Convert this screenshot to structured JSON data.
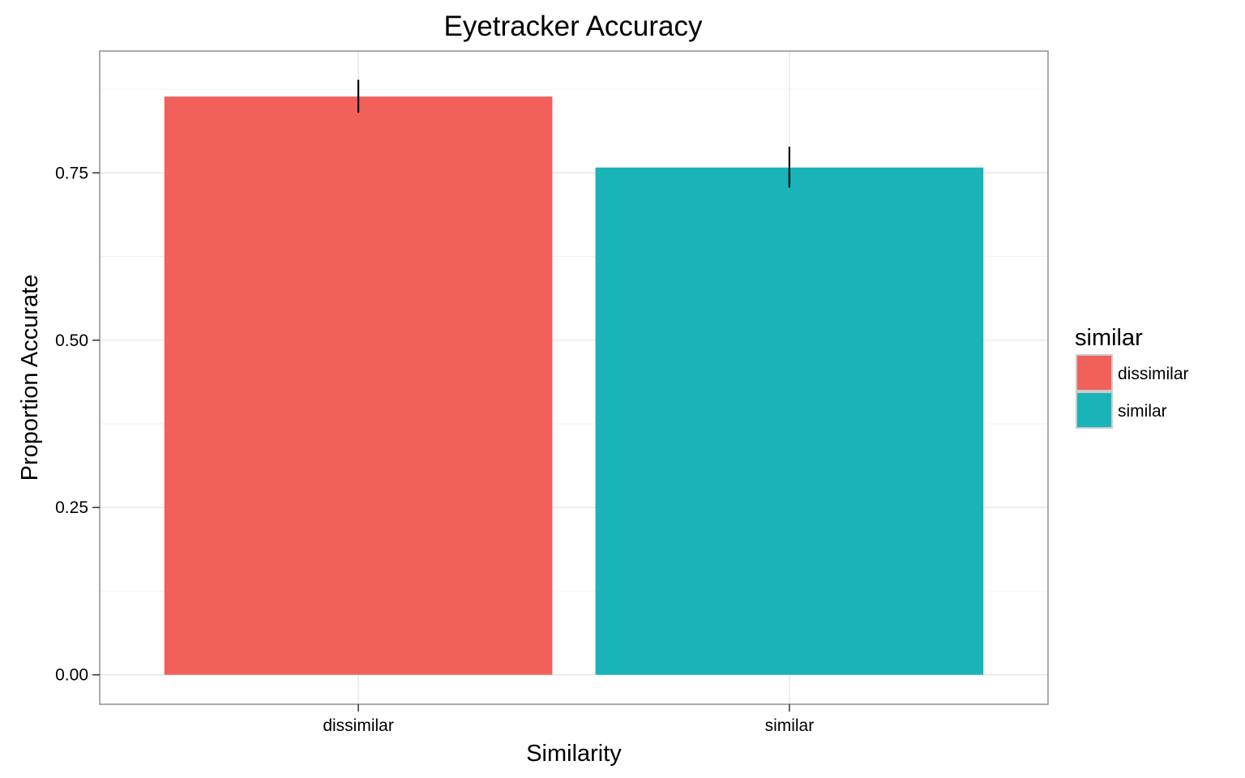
{
  "chart_data": {
    "type": "bar",
    "title": "Eyetracker Accuracy",
    "xlabel": "Similarity",
    "ylabel": "Proportion Accurate",
    "categories": [
      "dissimilar",
      "similar"
    ],
    "values": [
      0.864,
      0.758
    ],
    "error_bars": [
      {
        "low": 0.84,
        "high": 0.889
      },
      {
        "low": 0.728,
        "high": 0.789
      }
    ],
    "ylim": [
      -0.044,
      0.932
    ],
    "yticks": [
      0.0,
      0.25,
      0.5,
      0.75
    ],
    "ytick_labels": [
      "0.00",
      "0.25",
      "0.50",
      "0.75"
    ],
    "grid": true,
    "legend": {
      "title": "similar",
      "placement": "right",
      "items": [
        {
          "label": "dissimilar",
          "color": "#F2605C"
        },
        {
          "label": "similar",
          "color": "#1AB3B8"
        }
      ]
    },
    "colors": [
      "#F2605C",
      "#1AB3B8"
    ]
  }
}
